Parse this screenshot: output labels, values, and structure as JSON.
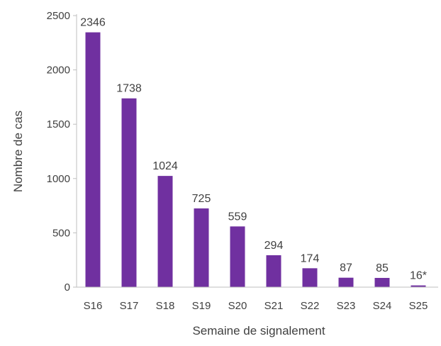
{
  "chart_data": {
    "type": "bar",
    "title": "",
    "xlabel": "Semaine de signalement",
    "ylabel": "Nombre de cas",
    "categories": [
      "S16",
      "S17",
      "S18",
      "S19",
      "S20",
      "S21",
      "S22",
      "S23",
      "S24",
      "S25"
    ],
    "values": [
      2346,
      1738,
      1024,
      725,
      559,
      294,
      174,
      87,
      85,
      16
    ],
    "data_labels": [
      "2346",
      "1738",
      "1024",
      "725",
      "559",
      "294",
      "174",
      "87",
      "85",
      "16*"
    ],
    "ylim": [
      0,
      2500
    ],
    "yticks": [
      0,
      500,
      1000,
      1500,
      2000,
      2500
    ],
    "grid": false,
    "legend": "none",
    "bar_color": "#7030A0",
    "axis_color": "#BFBFBF"
  }
}
